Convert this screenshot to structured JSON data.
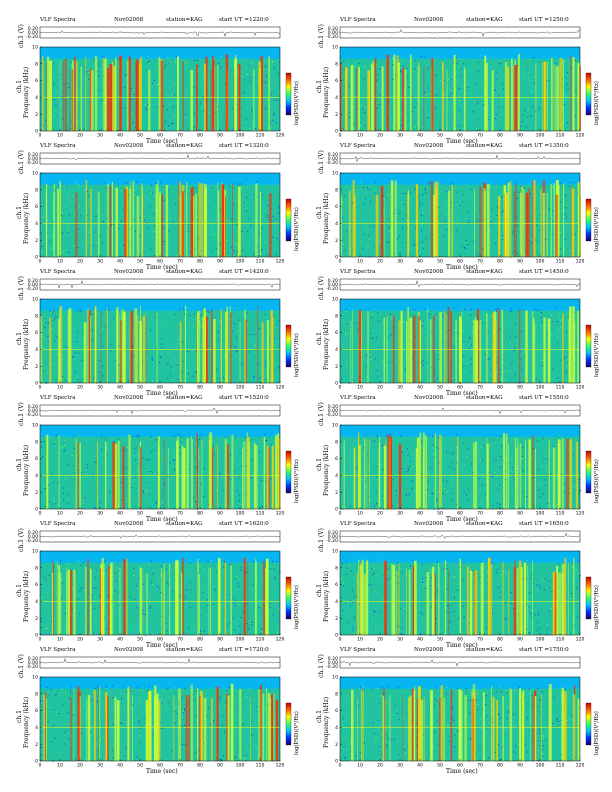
{
  "common": {
    "program": "VLF Spectra",
    "date": "Nov02008",
    "station": "station=KAG",
    "start_prefix": "start  UT",
    "waveform_label": "ch.1 (V)",
    "freq_label": "Frequency (kHz)",
    "chan_label": "ch.1",
    "time_label": "Time (sec)",
    "psd_label": "log(PSD)(V²/Hz)"
  },
  "colors": {
    "background": "#ffffff",
    "spectrogram_low": "#1fbf8f",
    "spectrogram_high": "#ff2a00",
    "colorbar": [
      "#1a0066",
      "#0030ff",
      "#00c0ff",
      "#33ff66",
      "#ffff00",
      "#ff6600",
      "#cc0000"
    ]
  },
  "chart_data": [
    {
      "type": "heatmap",
      "start_ut": "=1220:0",
      "x": [
        0,
        10,
        20,
        30,
        40,
        50,
        60,
        70,
        80,
        90,
        100,
        110,
        120
      ],
      "xlim": [
        0,
        120
      ],
      "y": [
        0,
        2,
        4,
        6,
        8,
        10
      ],
      "ylim": [
        0,
        10
      ],
      "waveform_ticks": [
        "0.20",
        "0.00",
        "-0.20"
      ],
      "xlabel": "Time (sec)",
      "ylabel": "Frequency (kHz)",
      "colorbar_label": "log(PSD)(V²/Hz)",
      "intensity": 0.55
    },
    {
      "type": "heatmap",
      "start_ut": "=1250:0",
      "x": [
        0,
        10,
        20,
        30,
        40,
        50,
        60,
        70,
        80,
        90,
        100,
        110,
        120
      ],
      "xlim": [
        0,
        120
      ],
      "y": [
        0,
        2,
        4,
        6,
        8,
        10
      ],
      "ylim": [
        0,
        10
      ],
      "waveform_ticks": [
        "0.20",
        "0.00",
        "-0.20"
      ],
      "xlabel": "Time (sec)",
      "ylabel": "Frequency (kHz)",
      "colorbar_label": "log(PSD)(V²/Hz)",
      "intensity": 0.45
    },
    {
      "type": "heatmap",
      "start_ut": "=1320:0",
      "x": [
        0,
        10,
        20,
        30,
        40,
        50,
        60,
        70,
        80,
        90,
        100,
        110,
        120
      ],
      "xlim": [
        0,
        120
      ],
      "y": [
        0,
        2,
        4,
        6,
        8,
        10
      ],
      "ylim": [
        0,
        10
      ],
      "waveform_ticks": [
        "0.20",
        "0.00",
        "-0.20"
      ],
      "xlabel": "Time (sec)",
      "ylabel": "Frequency (kHz)",
      "colorbar_label": "log(PSD)(V²/Hz)",
      "intensity": 0.5
    },
    {
      "type": "heatmap",
      "start_ut": "=1350:0",
      "x": [
        0,
        10,
        20,
        30,
        40,
        50,
        60,
        70,
        80,
        90,
        100,
        110,
        120
      ],
      "xlim": [
        0,
        120
      ],
      "y": [
        0,
        2,
        4,
        6,
        8,
        10
      ],
      "ylim": [
        0,
        10
      ],
      "waveform_ticks": [
        "0.20",
        "0.00",
        "-0.20"
      ],
      "xlabel": "Time (sec)",
      "ylabel": "Frequency (kHz)",
      "colorbar_label": "log(PSD)(V²/Hz)",
      "intensity": 0.5
    },
    {
      "type": "heatmap",
      "start_ut": "=1420:0",
      "x": [
        0,
        10,
        20,
        30,
        40,
        50,
        60,
        70,
        80,
        90,
        100,
        110,
        120
      ],
      "xlim": [
        0,
        120
      ],
      "y": [
        0,
        2,
        4,
        6,
        8,
        10
      ],
      "ylim": [
        0,
        10
      ],
      "waveform_ticks": [
        "0.20",
        "0.00",
        "-0.20"
      ],
      "xlabel": "Time (sec)",
      "ylabel": "Frequency (kHz)",
      "colorbar_label": "log(PSD)(V²/Hz)",
      "intensity": 0.45
    },
    {
      "type": "heatmap",
      "start_ut": "=1450:0",
      "x": [
        0,
        10,
        20,
        30,
        40,
        50,
        60,
        70,
        80,
        90,
        100,
        110,
        120
      ],
      "xlim": [
        0,
        120
      ],
      "y": [
        0,
        2,
        4,
        6,
        8,
        10
      ],
      "ylim": [
        0,
        10
      ],
      "waveform_ticks": [
        "0.20",
        "0.00",
        "-0.20"
      ],
      "xlabel": "Time (sec)",
      "ylabel": "Frequency (kHz)",
      "colorbar_label": "log(PSD)(V²/Hz)",
      "intensity": 0.35
    },
    {
      "type": "heatmap",
      "start_ut": "=1520:0",
      "x": [
        0,
        10,
        20,
        30,
        40,
        50,
        60,
        70,
        80,
        90,
        100,
        110,
        120
      ],
      "xlim": [
        0,
        120
      ],
      "y": [
        0,
        2,
        4,
        6,
        8,
        10
      ],
      "ylim": [
        0,
        10
      ],
      "waveform_ticks": [
        "0.20",
        "0.00",
        "-0.20"
      ],
      "xlabel": "Time (sec)",
      "ylabel": "Frequency (kHz)",
      "colorbar_label": "log(PSD)(V²/Hz)",
      "intensity": 0.3
    },
    {
      "type": "heatmap",
      "start_ut": "=1550:0",
      "x": [
        0,
        10,
        20,
        30,
        40,
        50,
        60,
        70,
        80,
        90,
        100,
        110,
        120
      ],
      "xlim": [
        0,
        120
      ],
      "y": [
        0,
        2,
        4,
        6,
        8,
        10
      ],
      "ylim": [
        0,
        10
      ],
      "waveform_ticks": [
        "0.20",
        "0.00",
        "-0.20"
      ],
      "xlabel": "Time (sec)",
      "ylabel": "Frequency (kHz)",
      "colorbar_label": "log(PSD)(V²/Hz)",
      "intensity": 0.3
    },
    {
      "type": "heatmap",
      "start_ut": "=1620:0",
      "x": [
        0,
        10,
        20,
        30,
        40,
        50,
        60,
        70,
        80,
        90,
        100,
        110,
        120
      ],
      "xlim": [
        0,
        120
      ],
      "y": [
        0,
        2,
        4,
        6,
        8,
        10
      ],
      "ylim": [
        0,
        10
      ],
      "waveform_ticks": [
        "0.20",
        "0.00",
        "-0.20"
      ],
      "xlabel": "Time (sec)",
      "ylabel": "Frequency (kHz)",
      "colorbar_label": "log(PSD)(V²/Hz)",
      "intensity": 0.35
    },
    {
      "type": "heatmap",
      "start_ut": "=1650:0",
      "x": [
        0,
        10,
        20,
        30,
        40,
        50,
        60,
        70,
        80,
        90,
        100,
        110,
        120
      ],
      "xlim": [
        0,
        120
      ],
      "y": [
        0,
        2,
        4,
        6,
        8,
        10
      ],
      "ylim": [
        0,
        10
      ],
      "waveform_ticks": [
        "0.20",
        "0.00",
        "-0.20"
      ],
      "xlabel": "Time (sec)",
      "ylabel": "Frequency (kHz)",
      "colorbar_label": "log(PSD)(V²/Hz)",
      "intensity": 0.4
    },
    {
      "type": "heatmap",
      "start_ut": "=1720:0",
      "x": [
        0,
        10,
        20,
        30,
        40,
        50,
        60,
        70,
        80,
        90,
        100,
        110,
        120
      ],
      "xlim": [
        0,
        120
      ],
      "y": [
        0,
        2,
        4,
        6,
        8,
        10
      ],
      "ylim": [
        0,
        10
      ],
      "waveform_ticks": [
        "0.20",
        "0.00",
        "-0.20"
      ],
      "xlabel": "Time (sec)",
      "ylabel": "Frequency (kHz)",
      "colorbar_label": "log(PSD)(V²/Hz)",
      "intensity": 0.45
    },
    {
      "type": "heatmap",
      "start_ut": "=1750:0",
      "x": [
        0,
        10,
        20,
        30,
        40,
        50,
        60,
        70,
        80,
        90,
        100,
        110,
        120
      ],
      "xlim": [
        0,
        120
      ],
      "y": [
        0,
        2,
        4,
        6,
        8,
        10
      ],
      "ylim": [
        0,
        10
      ],
      "waveform_ticks": [
        "0.20",
        "0.00",
        "-0.20"
      ],
      "xlabel": "Time (sec)",
      "ylabel": "Frequency (kHz)",
      "colorbar_label": "log(PSD)(V²/Hz)",
      "intensity": 0.45
    }
  ]
}
